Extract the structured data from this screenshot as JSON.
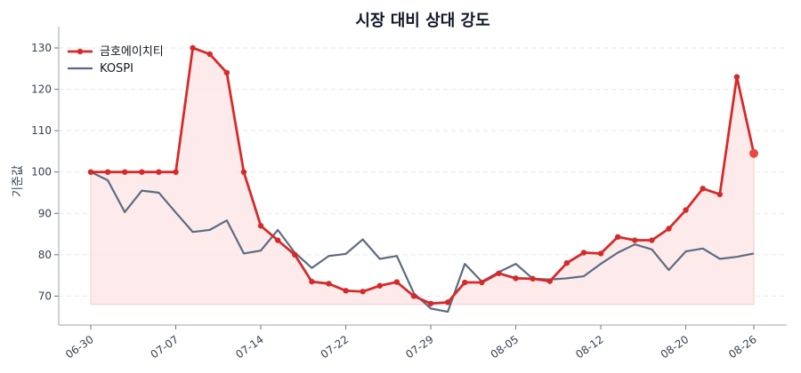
{
  "chart_data": {
    "type": "line",
    "title": "시장 대비 상대 강도",
    "xlabel": "",
    "ylabel": "기준값",
    "ylim": [
      63,
      133
    ],
    "yticks": [
      70,
      80,
      90,
      100,
      110,
      120,
      130
    ],
    "x_tick_labels": [
      "06-30",
      "07-07",
      "07-14",
      "07-22",
      "07-29",
      "08-05",
      "08-12",
      "08-20",
      "08-26"
    ],
    "x_tick_positions": [
      0,
      5,
      10,
      15,
      20,
      25,
      30,
      35,
      39
    ],
    "grid": true,
    "legend_position": "top-left",
    "shaded_area_base": 68,
    "series": [
      {
        "name": "금호에이치티",
        "color": "#d62a2a",
        "values": [
          100,
          100,
          100,
          100,
          100,
          100,
          130,
          128.5,
          124,
          100,
          87,
          83.5,
          80,
          73.5,
          73,
          71.3,
          71.1,
          72.5,
          73.4,
          70,
          68.2,
          68.5,
          73.3,
          73.3,
          75.5,
          74.3,
          74.2,
          73.6,
          78,
          80.5,
          80.3,
          84.3,
          83.5,
          83.5,
          86.3,
          90.8,
          96,
          94.6,
          123,
          104.5
        ]
      },
      {
        "name": "KOSPI",
        "color": "#5c6b82",
        "values": [
          100,
          98,
          90.3,
          95.5,
          95,
          90.2,
          85.5,
          86,
          88.3,
          80.3,
          81,
          86,
          80.5,
          76.8,
          79.7,
          80.2,
          83.7,
          79,
          79.7,
          70.7,
          67,
          66.2,
          77.8,
          73.5,
          75.8,
          77.8,
          74.2,
          74,
          74.3,
          74.8,
          77.8,
          80.5,
          82.5,
          81.3,
          76.3,
          80.8,
          81.5,
          79,
          79.5,
          80.3
        ]
      }
    ]
  }
}
